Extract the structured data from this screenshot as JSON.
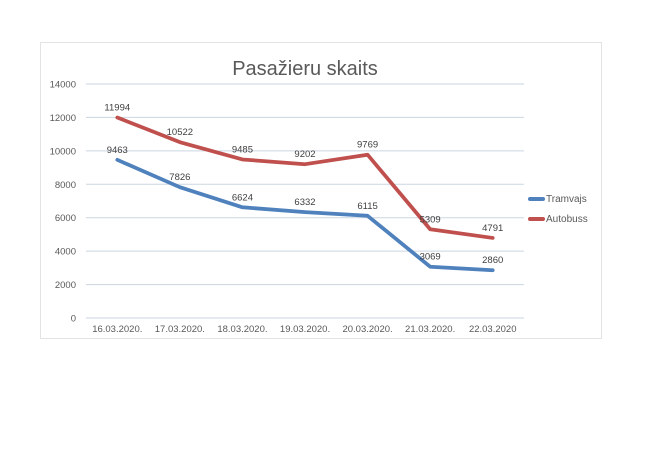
{
  "chart_data": {
    "type": "line",
    "title": "Pasažieru skaits",
    "categories": [
      "16.03.2020.",
      "17.03.2020.",
      "18.03.2020.",
      "19.03.2020.",
      "20.03.2020.",
      "21.03.2020.",
      "22.03.2020"
    ],
    "series": [
      {
        "name": "Tramvajs",
        "color": "#4F81BD",
        "values": [
          9463,
          7826,
          6624,
          6332,
          6115,
          3069,
          2860
        ]
      },
      {
        "name": "Autobuss",
        "color": "#C0504D",
        "values": [
          11994,
          10522,
          9485,
          9202,
          9769,
          5309,
          4791
        ]
      }
    ],
    "xlabel": "",
    "ylabel": "",
    "ylim": [
      0,
      14000
    ],
    "ytick_step": 2000,
    "grid": true,
    "data_labels": true,
    "legend_position": "right",
    "theme": {
      "grid_color": "#CBD5E0",
      "tick_text_color": "#595959",
      "data_label_color": "#404040",
      "title_color": "#595959",
      "chart_border_color": "#E3E3E3",
      "background": "#FFFFFF"
    }
  }
}
